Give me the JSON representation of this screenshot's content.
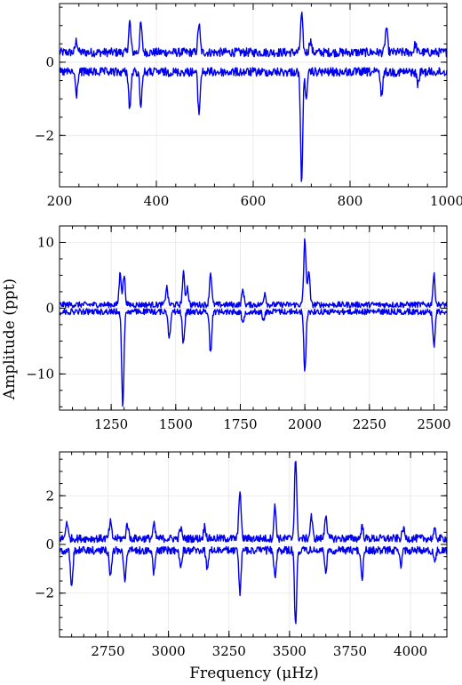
{
  "chart_data": [
    {
      "type": "line",
      "xlim": [
        200,
        1000
      ],
      "ylim": [
        -3.4,
        1.6
      ],
      "xticks": [
        200,
        400,
        600,
        800,
        1000
      ],
      "xtick_labels": [
        "200",
        "400",
        "600",
        "800",
        "1000"
      ],
      "yticks": [
        -2,
        0
      ],
      "ytick_labels": [
        "−2",
        "0"
      ],
      "grid": true,
      "series": [
        {
          "role": "positive",
          "baseline": 0.22,
          "noise": 0.12,
          "peaks": [
            [
              235,
              0.55
            ],
            [
              345,
              1.05
            ],
            [
              368,
              1.0
            ],
            [
              488,
              1.0
            ],
            [
              700,
              1.25
            ],
            [
              718,
              0.55
            ],
            [
              875,
              0.9
            ],
            [
              935,
              0.45
            ]
          ]
        },
        {
          "role": "negative",
          "baseline": -0.22,
          "noise": 0.12,
          "peaks": [
            [
              235,
              -0.85
            ],
            [
              345,
              -1.25
            ],
            [
              368,
              -1.1
            ],
            [
              488,
              -1.35
            ],
            [
              700,
              -3.2
            ],
            [
              710,
              -0.9
            ],
            [
              865,
              -0.85
            ],
            [
              940,
              -0.55
            ]
          ]
        }
      ]
    },
    {
      "type": "line",
      "xlim": [
        1050,
        2550
      ],
      "ylim": [
        -15.5,
        12.5
      ],
      "xticks": [
        1250,
        1500,
        1750,
        2000,
        2250,
        2500
      ],
      "xtick_labels": [
        "1250",
        "1500",
        "1750",
        "2000",
        "2250",
        "2500"
      ],
      "yticks": [
        -10,
        0,
        10
      ],
      "ytick_labels": [
        "−10",
        "0",
        "10"
      ],
      "ylabel": "Amplitude (ppt)",
      "grid": true,
      "series": [
        {
          "role": "positive",
          "baseline": 0.35,
          "noise": 0.45,
          "peaks": [
            [
              1285,
              5.2
            ],
            [
              1300,
              4.8
            ],
            [
              1465,
              3.0
            ],
            [
              1530,
              5.1
            ],
            [
              1545,
              3.0
            ],
            [
              1635,
              5.3
            ],
            [
              1760,
              2.6
            ],
            [
              1845,
              2.2
            ],
            [
              2000,
              10.4
            ],
            [
              2015,
              5.6
            ],
            [
              2500,
              4.8
            ]
          ]
        },
        {
          "role": "negative",
          "baseline": -0.35,
          "noise": 0.45,
          "peaks": [
            [
              1295,
              -14.8
            ],
            [
              1475,
              -4.2
            ],
            [
              1530,
              -5.3
            ],
            [
              1635,
              -6.6
            ],
            [
              1760,
              -2.2
            ],
            [
              1840,
              -1.8
            ],
            [
              2000,
              -9.6
            ],
            [
              2500,
              -5.5
            ]
          ]
        }
      ]
    },
    {
      "type": "line",
      "xlim": [
        2550,
        4150
      ],
      "ylim": [
        -3.8,
        3.8
      ],
      "xticks": [
        2750,
        3000,
        3250,
        3500,
        3750,
        4000
      ],
      "xtick_labels": [
        "2750",
        "3000",
        "3250",
        "3500",
        "3750",
        "4000"
      ],
      "yticks": [
        -2,
        0,
        2
      ],
      "ytick_labels": [
        "−2",
        "0",
        "2"
      ],
      "xlabel": "Frequency (μHz)",
      "grid": true,
      "series": [
        {
          "role": "positive",
          "baseline": 0.18,
          "noise": 0.16,
          "peaks": [
            [
              2580,
              0.9
            ],
            [
              2760,
              0.85
            ],
            [
              2830,
              0.8
            ],
            [
              2940,
              0.75
            ],
            [
              3050,
              0.6
            ],
            [
              3150,
              0.7
            ],
            [
              3295,
              2.2
            ],
            [
              3440,
              1.5
            ],
            [
              3525,
              3.5
            ],
            [
              3590,
              1.1
            ],
            [
              3650,
              1.2
            ],
            [
              3800,
              0.7
            ],
            [
              3970,
              0.6
            ],
            [
              4100,
              0.5
            ]
          ]
        },
        {
          "role": "negative",
          "baseline": -0.18,
          "noise": 0.16,
          "peaks": [
            [
              2600,
              -1.75
            ],
            [
              2760,
              -1.3
            ],
            [
              2820,
              -1.4
            ],
            [
              2940,
              -1.1
            ],
            [
              3050,
              -0.9
            ],
            [
              3160,
              -1.0
            ],
            [
              3295,
              -1.95
            ],
            [
              3440,
              -1.2
            ],
            [
              3525,
              -3.2
            ],
            [
              3650,
              -1.0
            ],
            [
              3800,
              -1.3
            ],
            [
              3960,
              -0.8
            ],
            [
              4100,
              -0.7
            ]
          ]
        }
      ]
    }
  ]
}
